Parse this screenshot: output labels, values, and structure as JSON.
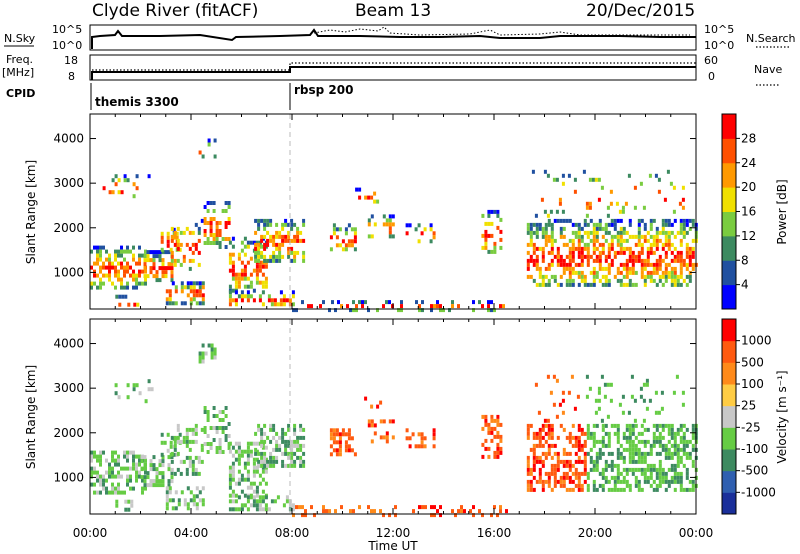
{
  "header": {
    "station": "Clyde River (fitACF)",
    "beam": "Beam 13",
    "date": "20/Dec/2015"
  },
  "top_panels": {
    "nsky_label": "N.Sky",
    "nsky_ticks": [
      "10^5",
      "10^0"
    ],
    "nsearch_label": "N.Search",
    "nsearch_ticks": [
      "10^5",
      "10^0"
    ],
    "freq_label": "Freq.",
    "freq_unit": "[MHz]",
    "freq_ticks": [
      "18",
      "8"
    ],
    "nave_label": "Nave",
    "nave_ticks": [
      "60",
      "0"
    ],
    "cpid_label": "CPID",
    "cpid_entries": [
      {
        "name": "themis 3300",
        "start_hour": 0
      },
      {
        "name": "rbsp 200",
        "start_hour": 8
      }
    ]
  },
  "chart_data": [
    {
      "type": "heatmap",
      "panel": "power",
      "ylabel": "Slant Range [km]",
      "ylim": [
        180,
        4550
      ],
      "yticks": [
        "1000",
        "2000",
        "3000",
        "4000"
      ],
      "xlim_hours": [
        0,
        24
      ],
      "colorbar_label": "Power [dB]",
      "colorbar_ticks": [
        "4",
        "8",
        "12",
        "16",
        "20",
        "24",
        "28"
      ],
      "colors": [
        "#0000ff",
        "#2050a0",
        "#3c8a60",
        "#7acc40",
        "#f0e000",
        "#ff9900",
        "#ff5000",
        "#ff0000"
      ]
    },
    {
      "type": "heatmap",
      "panel": "velocity",
      "ylabel": "Slant Range [km]",
      "ylim": [
        180,
        4550
      ],
      "yticks": [
        "1000",
        "2000",
        "3000",
        "4000"
      ],
      "xlim_hours": [
        0,
        24
      ],
      "colorbar_label": "Velocity [m s⁻¹]",
      "colorbar_ticks": [
        "1000",
        "500",
        "100",
        "25",
        "-25",
        "-100",
        "-500",
        "-1000"
      ],
      "colors": [
        "#1a2f9a",
        "#2f5fb0",
        "#3d8a60",
        "#66cc44",
        "#c8c8c8",
        "#ffcc44",
        "#ff8a1a",
        "#ff5a10",
        "#ff0000"
      ]
    }
  ],
  "x_axis": {
    "ticks": [
      "00:00",
      "04:00",
      "08:00",
      "12:00",
      "16:00",
      "20:00",
      "00:00"
    ],
    "label": "Time UT"
  }
}
